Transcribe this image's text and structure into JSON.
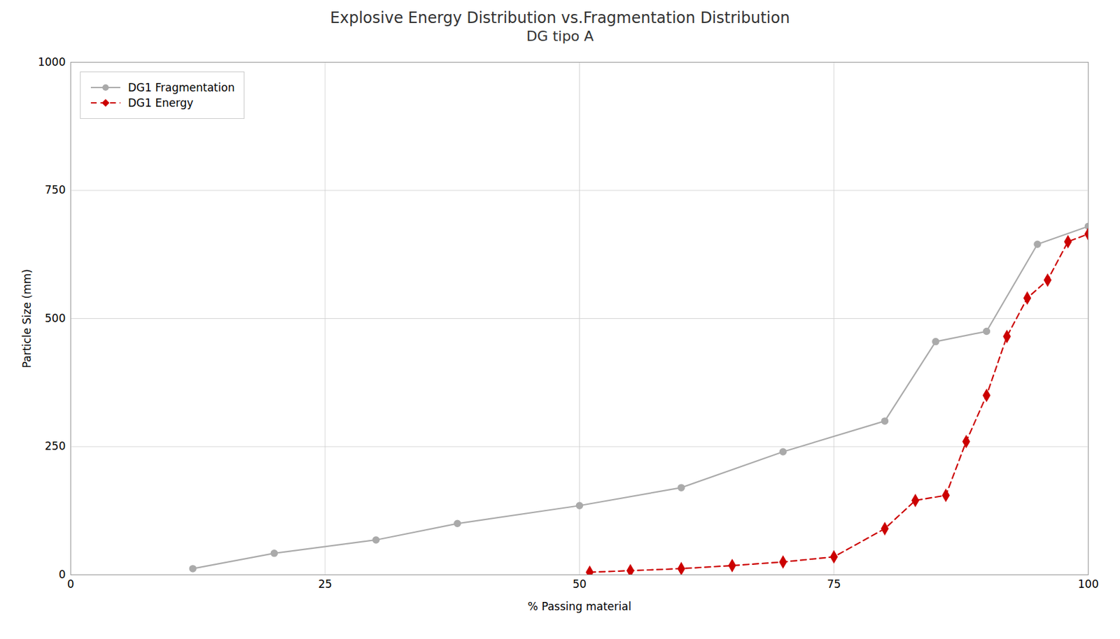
{
  "chart_data": {
    "type": "line",
    "title": "Explosive Energy Distribution vs.Fragmentation Distribution",
    "subtitle": "DG tipo A",
    "xlabel": "% Passing material",
    "ylabel": "Particle Size (mm)",
    "series": [
      {
        "name": "DG1 Fragmentation",
        "color": "#aaaaaa",
        "marker": "circle",
        "line_style": "solid",
        "x": [
          12,
          20,
          30,
          38,
          50,
          60,
          70,
          80,
          85,
          90,
          95,
          100
        ],
        "values": [
          12,
          42,
          68,
          100,
          135,
          170,
          240,
          300,
          455,
          475,
          645,
          680
        ]
      },
      {
        "name": "DG1 Energy",
        "color": "#cc0000",
        "marker": "diamond",
        "line_style": "dashed",
        "x": [
          51,
          55,
          60,
          65,
          70,
          75,
          80,
          83,
          86,
          88,
          90,
          92,
          94,
          96,
          98,
          100
        ],
        "values": [
          5,
          8,
          12,
          18,
          25,
          35,
          90,
          145,
          155,
          260,
          350,
          465,
          540,
          575,
          650,
          665
        ]
      }
    ],
    "xlim": [
      0,
      100
    ],
    "ylim": [
      0,
      1000
    ],
    "xticks": [
      0,
      25,
      50,
      75,
      100
    ],
    "yticks": [
      0,
      250,
      500,
      750,
      1000
    ],
    "grid": true,
    "legend": "upper left"
  }
}
